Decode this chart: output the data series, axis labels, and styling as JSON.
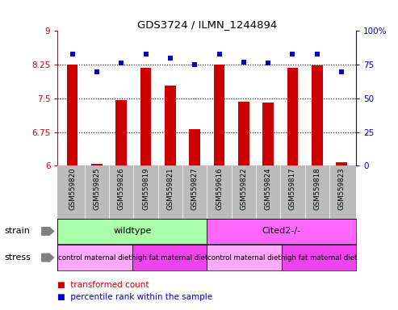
{
  "title": "GDS3724 / ILMN_1244894",
  "samples": [
    "GSM559820",
    "GSM559825",
    "GSM559826",
    "GSM559819",
    "GSM559821",
    "GSM559827",
    "GSM559616",
    "GSM559822",
    "GSM559824",
    "GSM559817",
    "GSM559818",
    "GSM559823"
  ],
  "bar_values": [
    8.25,
    6.05,
    7.47,
    8.19,
    7.78,
    6.82,
    8.25,
    7.43,
    7.4,
    8.18,
    8.24,
    6.08
  ],
  "percentile_values": [
    83,
    70,
    76,
    83,
    80,
    75,
    83,
    77,
    76,
    83,
    83,
    70
  ],
  "bar_color": "#cc0000",
  "dot_color": "#0000cc",
  "ylim_left": [
    6,
    9
  ],
  "ylim_right": [
    0,
    100
  ],
  "yticks_left": [
    6,
    6.75,
    7.5,
    8.25,
    9
  ],
  "yticks_right": [
    0,
    25,
    50,
    75,
    100
  ],
  "ytick_labels_right": [
    "0",
    "25",
    "50",
    "75",
    "100%"
  ],
  "grid_values": [
    6.75,
    7.5,
    8.25
  ],
  "strain_wildtype": {
    "label": "wildtype",
    "start": 0,
    "end": 6,
    "color": "#aaffaa"
  },
  "strain_cited": {
    "label": "Cited2-/-",
    "start": 6,
    "end": 12,
    "color": "#ff66ff"
  },
  "stress_groups": [
    {
      "label": "control maternal diet",
      "start": 0,
      "end": 3,
      "color": "#ffaaff"
    },
    {
      "label": "high fat maternal diet",
      "start": 3,
      "end": 6,
      "color": "#ee44ee"
    },
    {
      "label": "control maternal diet",
      "start": 6,
      "end": 9,
      "color": "#ffaaff"
    },
    {
      "label": "high fat maternal diet",
      "start": 9,
      "end": 12,
      "color": "#ee44ee"
    }
  ],
  "strain_label": "strain",
  "stress_label": "stress",
  "legend_bar_label": "transformed count",
  "legend_dot_label": "percentile rank within the sample",
  "bg_color": "#ffffff",
  "tick_area_color": "#bbbbbb"
}
